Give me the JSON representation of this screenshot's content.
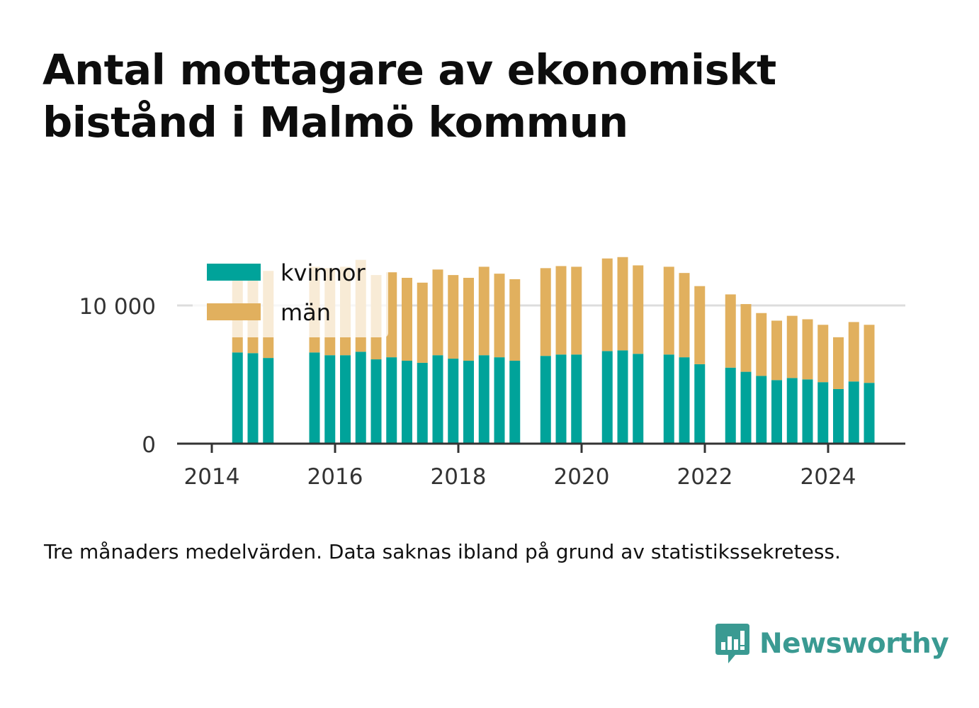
{
  "title": "Antal mottagare av ekonomiskt bistånd i Malmö kommun",
  "note": "Tre månaders medelvärden. Data saknas ibland på grund av statistikssekretess.",
  "brand": {
    "name": "Newsworthy",
    "icon": "newsworthy-logo-icon",
    "color": "#3a9a92"
  },
  "colors": {
    "kvinnor": "#00a39a",
    "man": "#e1b05e",
    "grid": "#dddddd",
    "axis": "#333333"
  },
  "chart_data": {
    "type": "bar",
    "stacked": true,
    "x": [
      "2014-06",
      "2014-09",
      "2014-12",
      "2015-09",
      "2015-12",
      "2016-03",
      "2016-06",
      "2016-09",
      "2016-12",
      "2017-03",
      "2017-06",
      "2017-09",
      "2017-12",
      "2018-03",
      "2018-06",
      "2018-09",
      "2018-12",
      "2019-06",
      "2019-09",
      "2019-12",
      "2020-06",
      "2020-09",
      "2020-12",
      "2021-06",
      "2021-09",
      "2021-12",
      "2022-06",
      "2022-09",
      "2022-12",
      "2023-03",
      "2023-06",
      "2023-09",
      "2023-12",
      "2024-03",
      "2024-06",
      "2024-09"
    ],
    "series": [
      {
        "name": "kvinnor",
        "values": [
          6600,
          6550,
          6200,
          6600,
          6400,
          6400,
          6650,
          6100,
          6250,
          6000,
          5850,
          6400,
          6150,
          6000,
          6400,
          6250,
          6000,
          6350,
          6450,
          6450,
          6700,
          6750,
          6500,
          6450,
          6250,
          5750,
          5500,
          5200,
          4900,
          4600,
          4750,
          4650,
          4450,
          3950,
          4500,
          4400
        ]
      },
      {
        "name": "män",
        "values": [
          5850,
          6000,
          6300,
          6200,
          6300,
          6400,
          6650,
          6100,
          6150,
          6000,
          5800,
          6200,
          6050,
          6000,
          6400,
          6050,
          5900,
          6350,
          6400,
          6350,
          6700,
          6750,
          6400,
          6350,
          6100,
          5650,
          5300,
          4900,
          4550,
          4300,
          4500,
          4350,
          4150,
          3750,
          4300,
          4200
        ]
      }
    ],
    "x_ticks": [
      "2014",
      "2016",
      "2018",
      "2020",
      "2022",
      "2024"
    ],
    "y_ticks": [
      "0",
      "10 000"
    ],
    "ylim": [
      0,
      14000
    ],
    "grid": true,
    "legend": "top-left"
  }
}
